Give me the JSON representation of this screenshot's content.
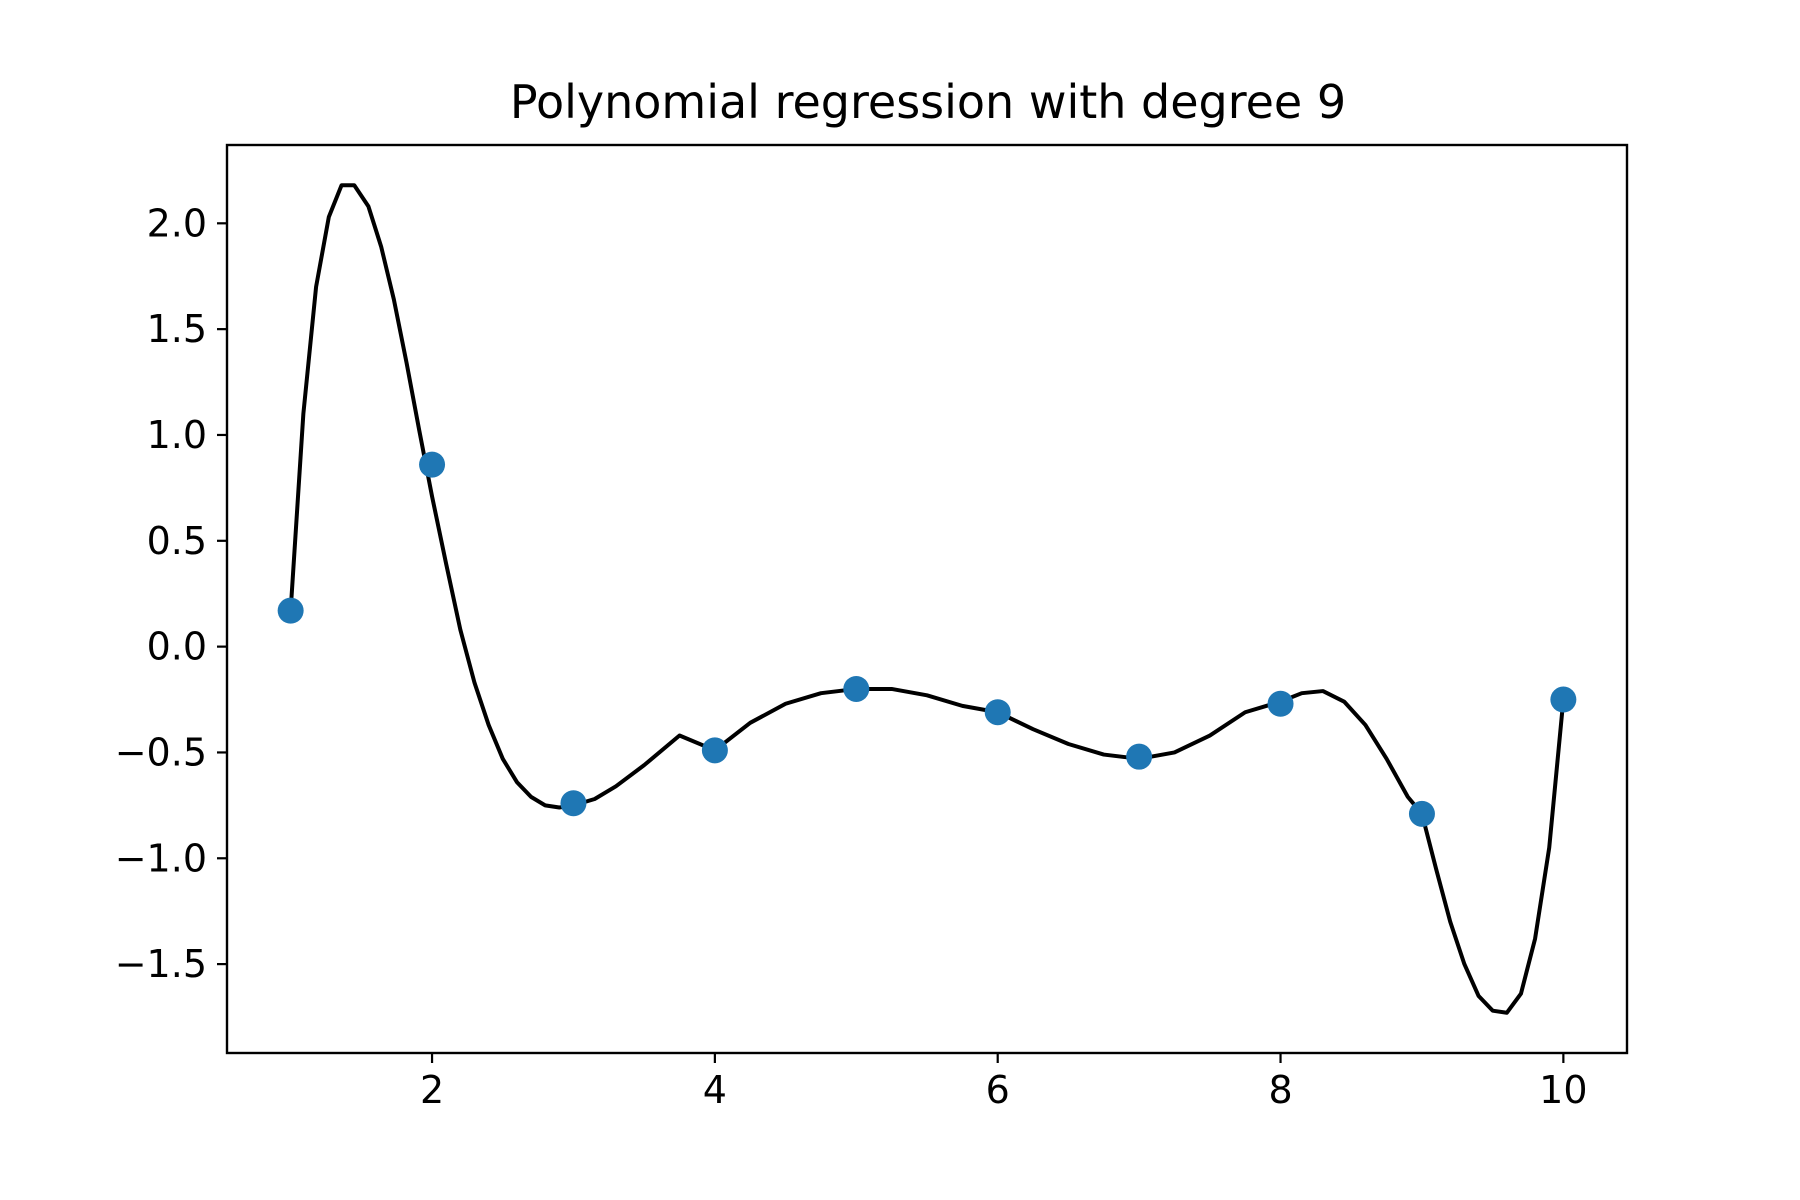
{
  "chart_data": {
    "type": "scatter",
    "title": "Polynomial regression with degree 9",
    "xlabel": "",
    "ylabel": "",
    "xlim": [
      0.55,
      10.45
    ],
    "ylim": [
      -1.92,
      2.37
    ],
    "xticks": [
      2,
      4,
      6,
      8,
      10
    ],
    "xtick_labels": [
      "2",
      "4",
      "6",
      "8",
      "10"
    ],
    "yticks": [
      2.0,
      1.5,
      1.0,
      0.5,
      0.0,
      -0.5,
      -1.0,
      -1.5
    ],
    "ytick_labels": [
      "2.0",
      "1.5",
      "1.0",
      "0.5",
      "0.0",
      "−0.5",
      "−1.0",
      "−1.5"
    ],
    "grid": false,
    "legend": "none",
    "series": [
      {
        "kind": "scatter",
        "color": "#1f77b4",
        "x": [
          1,
          2,
          3,
          4,
          5,
          6,
          7,
          8,
          9,
          10
        ],
        "y": [
          0.17,
          0.86,
          -0.74,
          -0.49,
          -0.2,
          -0.31,
          -0.52,
          -0.27,
          -0.79,
          -0.25
        ]
      },
      {
        "kind": "line",
        "color": "#000000",
        "x": [
          1.0,
          1.09,
          1.18,
          1.27,
          1.36,
          1.45,
          1.55,
          1.64,
          1.73,
          1.82,
          1.91,
          2.0,
          2.1,
          2.2,
          2.3,
          2.4,
          2.5,
          2.6,
          2.7,
          2.8,
          2.9,
          3.0,
          3.15,
          3.3,
          3.5,
          3.75,
          4.0,
          4.25,
          4.5,
          4.75,
          5.0,
          5.25,
          5.5,
          5.75,
          6.0,
          6.25,
          6.5,
          6.75,
          7.0,
          7.25,
          7.5,
          7.75,
          8.0,
          8.15,
          8.3,
          8.45,
          8.6,
          8.75,
          8.9,
          9.0,
          9.1,
          9.2,
          9.3,
          9.4,
          9.5,
          9.6,
          9.7,
          9.8,
          9.9,
          10.0
        ],
        "y": [
          0.17,
          1.1,
          1.7,
          2.03,
          2.18,
          2.18,
          2.08,
          1.89,
          1.64,
          1.34,
          1.02,
          0.71,
          0.39,
          0.08,
          -0.17,
          -0.37,
          -0.53,
          -0.64,
          -0.71,
          -0.75,
          -0.76,
          -0.75,
          -0.72,
          -0.66,
          -0.56,
          -0.42,
          -0.49,
          -0.36,
          -0.27,
          -0.22,
          -0.2,
          -0.2,
          -0.23,
          -0.28,
          -0.31,
          -0.39,
          -0.46,
          -0.51,
          -0.53,
          -0.5,
          -0.42,
          -0.31,
          -0.26,
          -0.22,
          -0.21,
          -0.26,
          -0.37,
          -0.53,
          -0.71,
          -0.79,
          -1.05,
          -1.3,
          -1.5,
          -1.65,
          -1.72,
          -1.73,
          -1.64,
          -1.38,
          -0.95,
          -0.25
        ]
      }
    ]
  }
}
